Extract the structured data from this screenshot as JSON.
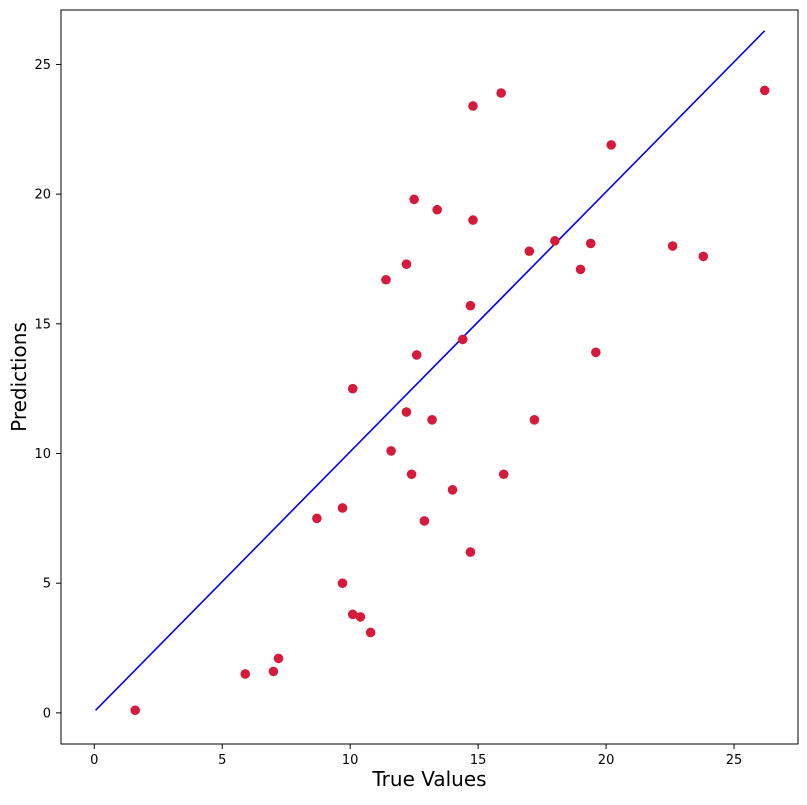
{
  "chart_data": {
    "type": "scatter",
    "title": "",
    "xlabel": "True Values",
    "ylabel": "Predictions",
    "xlim": [
      -1.3,
      27.5
    ],
    "ylim": [
      -1.2,
      27.1
    ],
    "xticks": [
      0,
      5,
      10,
      15,
      20,
      25
    ],
    "yticks": [
      0,
      5,
      10,
      15,
      20,
      25
    ],
    "grid": false,
    "colors": {
      "points": "#d61a3c",
      "reference_line": "#0000ff",
      "axes": "#000000"
    },
    "series": [
      {
        "type": "scatter",
        "points": [
          [
            1.6,
            0.1
          ],
          [
            5.9,
            1.5
          ],
          [
            7.0,
            1.6
          ],
          [
            7.2,
            2.1
          ],
          [
            8.7,
            7.5
          ],
          [
            9.7,
            7.9
          ],
          [
            9.7,
            5.0
          ],
          [
            10.1,
            3.8
          ],
          [
            10.4,
            3.7
          ],
          [
            10.8,
            3.1
          ],
          [
            10.1,
            12.5
          ],
          [
            11.4,
            16.7
          ],
          [
            11.6,
            10.1
          ],
          [
            12.2,
            17.3
          ],
          [
            12.2,
            11.6
          ],
          [
            12.4,
            9.2
          ],
          [
            12.5,
            19.8
          ],
          [
            12.6,
            13.8
          ],
          [
            12.9,
            7.4
          ],
          [
            13.2,
            11.3
          ],
          [
            13.4,
            19.4
          ],
          [
            14.0,
            8.6
          ],
          [
            14.4,
            14.4
          ],
          [
            14.7,
            15.7
          ],
          [
            14.7,
            6.2
          ],
          [
            14.8,
            23.4
          ],
          [
            14.8,
            19.0
          ],
          [
            15.9,
            23.9
          ],
          [
            16.0,
            9.2
          ],
          [
            17.0,
            17.8
          ],
          [
            17.2,
            11.3
          ],
          [
            18.0,
            18.2
          ],
          [
            19.0,
            17.1
          ],
          [
            19.4,
            18.1
          ],
          [
            19.6,
            13.9
          ],
          [
            20.2,
            21.9
          ],
          [
            22.6,
            18.0
          ],
          [
            23.8,
            17.6
          ],
          [
            26.2,
            24.0
          ]
        ]
      },
      {
        "type": "line",
        "points": [
          [
            0.05,
            0.1
          ],
          [
            26.2,
            26.3
          ]
        ]
      }
    ]
  }
}
